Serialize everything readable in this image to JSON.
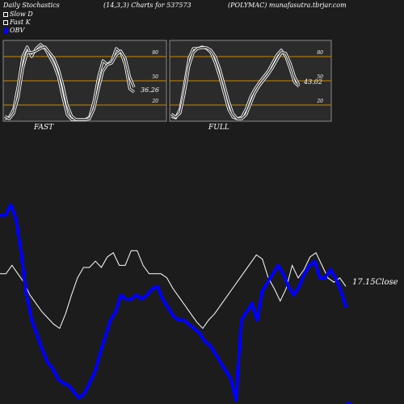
{
  "header": {
    "title": "Daily Stochastics",
    "params": "(14,3,3) Charts for 537573",
    "site": "(POLYMAC) munafasutra.tbrjar.com"
  },
  "legend": {
    "slow_d": "Slow  D",
    "fast_k": "Fast K",
    "obv": "OBV"
  },
  "colors": {
    "background": "#1c1c1c",
    "panel": "#2b2b2b",
    "level_line": "#c88a00",
    "stoch_line": "#ffffff",
    "price_line": "#ffffff",
    "obv_line": "#0000ff"
  },
  "chart_data": [
    {
      "type": "line",
      "name": "fast-stochastics",
      "title": "FAST",
      "ylim": [
        0,
        100
      ],
      "yticks": [
        "80",
        "50",
        "20"
      ],
      "levels": [
        80,
        50,
        20
      ],
      "last_value_label": "36.26",
      "series": [
        {
          "values": [
            3,
            5,
            15,
            45,
            80,
            92,
            80,
            90,
            95,
            90,
            80,
            70,
            55,
            30,
            8,
            2,
            2,
            2,
            2,
            5,
            25,
            55,
            75,
            70,
            75,
            90,
            85,
            70,
            40,
            36
          ]
        },
        {
          "values": [
            6,
            3,
            10,
            30,
            65,
            85,
            85,
            87,
            90,
            92,
            85,
            78,
            65,
            45,
            20,
            6,
            2,
            2,
            2,
            3,
            15,
            40,
            62,
            70,
            72,
            82,
            87,
            78,
            55,
            42
          ]
        }
      ]
    },
    {
      "type": "line",
      "name": "full-stochastics",
      "title": "FULL",
      "ylim": [
        0,
        100
      ],
      "yticks": [
        "80",
        "50",
        "20"
      ],
      "levels": [
        80,
        50,
        20
      ],
      "last_value_label": "43.02",
      "series": [
        {
          "values": [
            6,
            4,
            15,
            45,
            78,
            90,
            90,
            92,
            90,
            85,
            72,
            55,
            35,
            15,
            5,
            3,
            5,
            15,
            30,
            40,
            48,
            55,
            62,
            72,
            82,
            88,
            80,
            65,
            48,
            43
          ]
        },
        {
          "values": [
            9,
            5,
            10,
            35,
            68,
            85,
            90,
            91,
            91,
            88,
            80,
            65,
            45,
            25,
            9,
            3,
            3,
            8,
            22,
            35,
            44,
            51,
            58,
            66,
            76,
            85,
            84,
            72,
            55,
            45
          ]
        }
      ]
    },
    {
      "type": "line",
      "name": "price-and-obv",
      "series": [
        {
          "name": "OBV",
          "values": [
            90,
            90,
            95,
            88,
            72,
            52,
            40,
            33,
            26,
            20,
            17,
            12,
            10,
            9,
            6,
            3,
            5,
            10,
            15,
            24,
            32,
            40,
            44,
            52,
            50,
            50,
            52,
            50,
            52,
            55,
            56,
            50,
            46,
            42,
            40,
            40,
            38,
            36,
            34,
            30,
            28,
            24,
            20,
            16,
            12,
            2,
            40,
            44,
            48,
            40,
            54,
            58,
            62,
            66,
            62,
            56,
            52,
            56,
            62,
            66,
            68,
            60,
            60,
            64,
            60,
            54,
            46
          ]
        },
        {
          "name": "Close",
          "values": [
            62,
            62,
            66,
            62,
            58,
            52,
            48,
            44,
            41,
            38,
            36,
            43,
            52,
            60,
            65,
            65,
            68,
            65,
            70,
            72,
            66,
            66,
            73,
            73,
            66,
            62,
            62,
            62,
            60,
            55,
            51,
            47,
            43,
            39,
            36,
            40,
            43,
            47,
            51,
            55,
            59,
            63,
            67,
            71,
            69,
            60,
            55,
            49,
            55,
            66,
            60,
            64,
            70,
            72,
            66,
            60,
            58,
            60,
            56
          ]
        }
      ],
      "last_value_label": "17.15Close"
    }
  ]
}
